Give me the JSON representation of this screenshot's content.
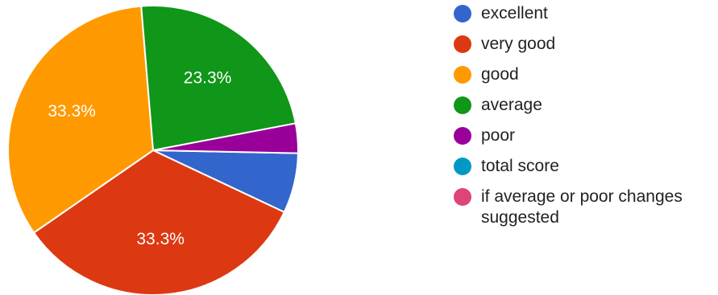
{
  "chart_data": {
    "type": "pie",
    "categories": [
      "excellent",
      "very good",
      "good",
      "average",
      "poor",
      "total score",
      "if average or poor changes suggested"
    ],
    "values": [
      6.7,
      33.3,
      33.3,
      23.3,
      3.3,
      0,
      0
    ],
    "colors": [
      "#3366cc",
      "#dc3912",
      "#ff9900",
      "#109618",
      "#990099",
      "#0099c6",
      "#dd4477"
    ],
    "slice_labels": [
      "",
      "33.3%",
      "33.3%",
      "23.3%",
      "",
      "",
      ""
    ],
    "legend_position": "right"
  }
}
